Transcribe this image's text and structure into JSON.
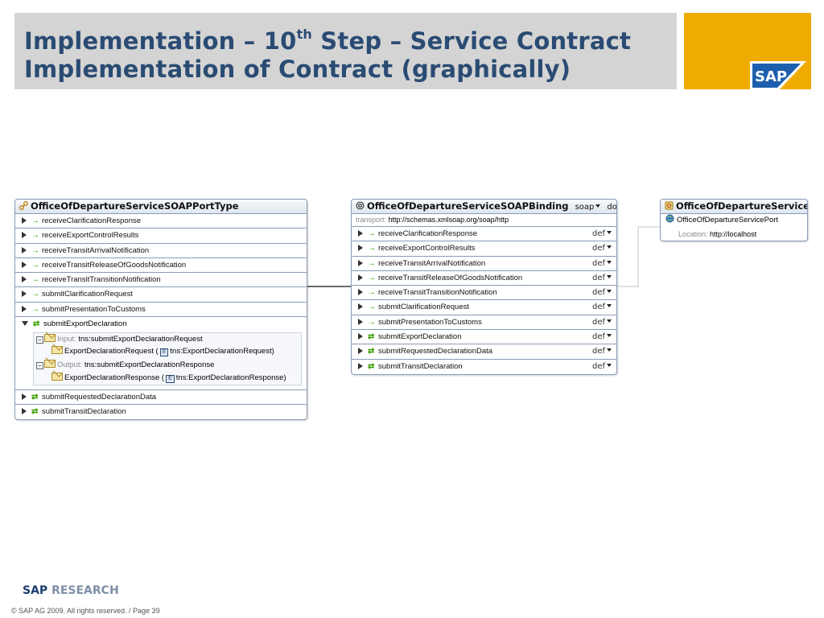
{
  "slide": {
    "title_line1_prefix": "Implementation – 10",
    "title_line1_sup": "th",
    "title_line1_suffix": " Step – Service Contract",
    "title_line2": "Implementation of Contract (graphically)",
    "logo_text": "SAP",
    "footer_brand_sap": "SAP",
    "footer_brand_research": "RESEARCH",
    "copyright": "© SAP AG 2009. All rights reserved. / Page 39"
  },
  "port_type": {
    "title": "OfficeOfDepartureServiceSOAPPortType",
    "operations": [
      {
        "label": "receiveClarificationResponse",
        "kind": "one-way"
      },
      {
        "label": "receiveExportControlResults",
        "kind": "one-way"
      },
      {
        "label": "receiveTransitArrivalNotification",
        "kind": "one-way"
      },
      {
        "label": "receiveTransitReleaseOfGoodsNotification",
        "kind": "one-way"
      },
      {
        "label": "receiveTransitTransitionNotification",
        "kind": "one-way"
      },
      {
        "label": "submitClarificationRequest",
        "kind": "one-way"
      },
      {
        "label": "submitPresentationToCustoms",
        "kind": "one-way"
      }
    ],
    "expanded_operation": {
      "label": "submitExportDeclaration",
      "input_label": "Input:",
      "input_message": "tns:submitExportDeclarationRequest",
      "input_part": "ExportDeclarationRequest",
      "input_element": "tns:ExportDeclarationRequest",
      "output_label": "Output:",
      "output_message": "tns:submitExportDeclarationResponse",
      "output_part": "ExportDeclarationResponse",
      "output_element": "tns:ExportDeclarationResponse",
      "element_badge": "E"
    },
    "operations_after": [
      {
        "label": "submitRequestedDeclarationData",
        "kind": "request-response"
      },
      {
        "label": "submitTransitDeclaration",
        "kind": "request-response"
      }
    ]
  },
  "binding": {
    "title": "OfficeOfDepartureServiceSOAPBinding",
    "style_soap": "soap",
    "style_doc": "doc",
    "transport_label": "transport:",
    "transport_value": "http://schemas.xmlsoap.org/soap/http",
    "def_label": "def",
    "operations": [
      {
        "label": "receiveClarificationResponse",
        "kind": "one-way"
      },
      {
        "label": "receiveExportControlResults",
        "kind": "one-way"
      },
      {
        "label": "receiveTransitArrivalNotification",
        "kind": "one-way"
      },
      {
        "label": "receiveTransitReleaseOfGoodsNotification",
        "kind": "one-way"
      },
      {
        "label": "receiveTransitTransitionNotification",
        "kind": "one-way"
      },
      {
        "label": "submitClarificationRequest",
        "kind": "one-way"
      },
      {
        "label": "submitPresentationToCustoms",
        "kind": "one-way"
      },
      {
        "label": "submitExportDeclaration",
        "kind": "request-response"
      },
      {
        "label": "submitRequestedDeclarationData",
        "kind": "request-response"
      },
      {
        "label": "submitTransitDeclaration",
        "kind": "request-response"
      }
    ]
  },
  "service": {
    "title": "OfficeOfDepartureService",
    "port": "OfficeOfDepartureServicePort",
    "location_label": "Location:",
    "location_value": "http://localhost"
  },
  "colors": {
    "title_text": "#2a4b73",
    "title_bg": "#d4d4d4",
    "logo_bg": "#f0ab00",
    "arrow_green": "#39a000",
    "panel_border": "#8a9bb4"
  },
  "icons": {
    "port_type": "port-type-icon",
    "binding": "binding-icon",
    "service": "service-icon",
    "port": "globe-icon",
    "one_way": "arrow-right-icon",
    "request_response": "swap-arrows-icon",
    "expand": "triangle-right-icon",
    "collapse": "triangle-down-icon"
  }
}
